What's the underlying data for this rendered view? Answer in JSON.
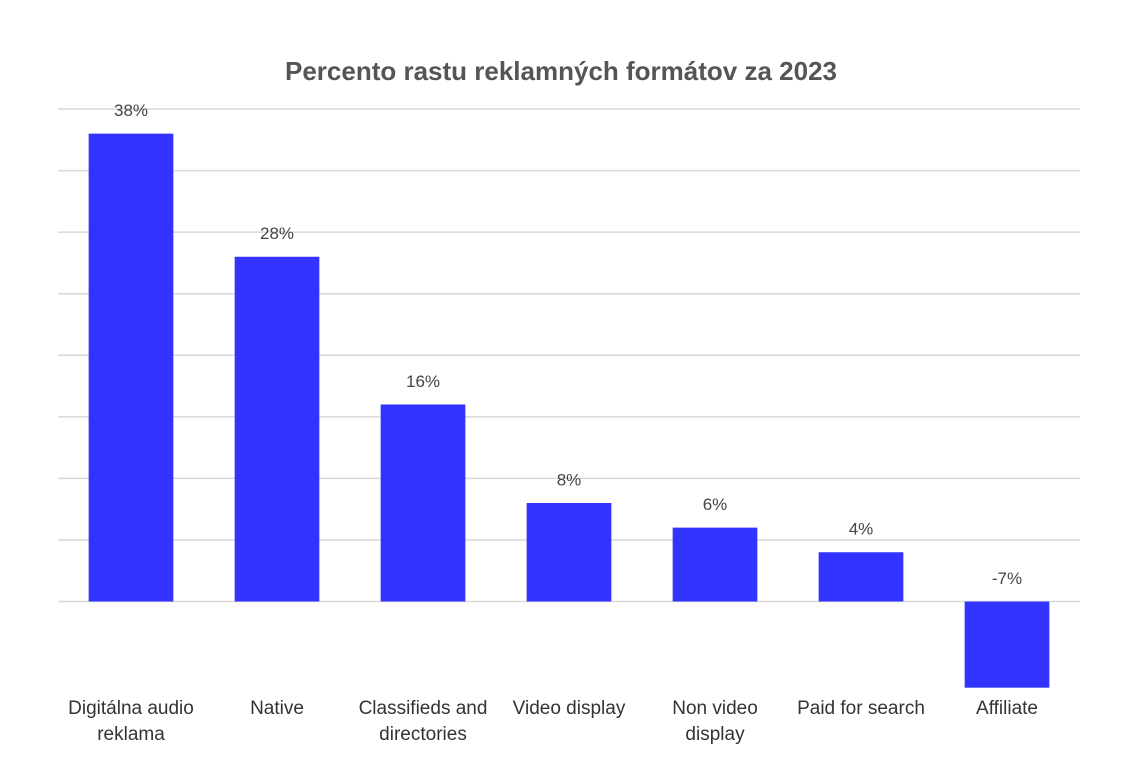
{
  "chart_data": {
    "type": "bar",
    "title": "Percento rastu reklamných formátov za 2023",
    "categories": [
      "Digitálna audio reklama",
      "Native",
      "Classifieds and directories",
      "Video display",
      "Non video display",
      "Paid for search",
      "Affiliate"
    ],
    "values": [
      38,
      28,
      16,
      8,
      6,
      4,
      -7
    ],
    "value_labels": [
      "38%",
      "28%",
      "16%",
      "8%",
      "6%",
      "4%",
      "-7%"
    ],
    "color": "#3333ff",
    "ylim": [
      -8,
      40
    ],
    "yticks": [
      0,
      5,
      10,
      15,
      20,
      25,
      30,
      35,
      40
    ],
    "grid": true
  }
}
